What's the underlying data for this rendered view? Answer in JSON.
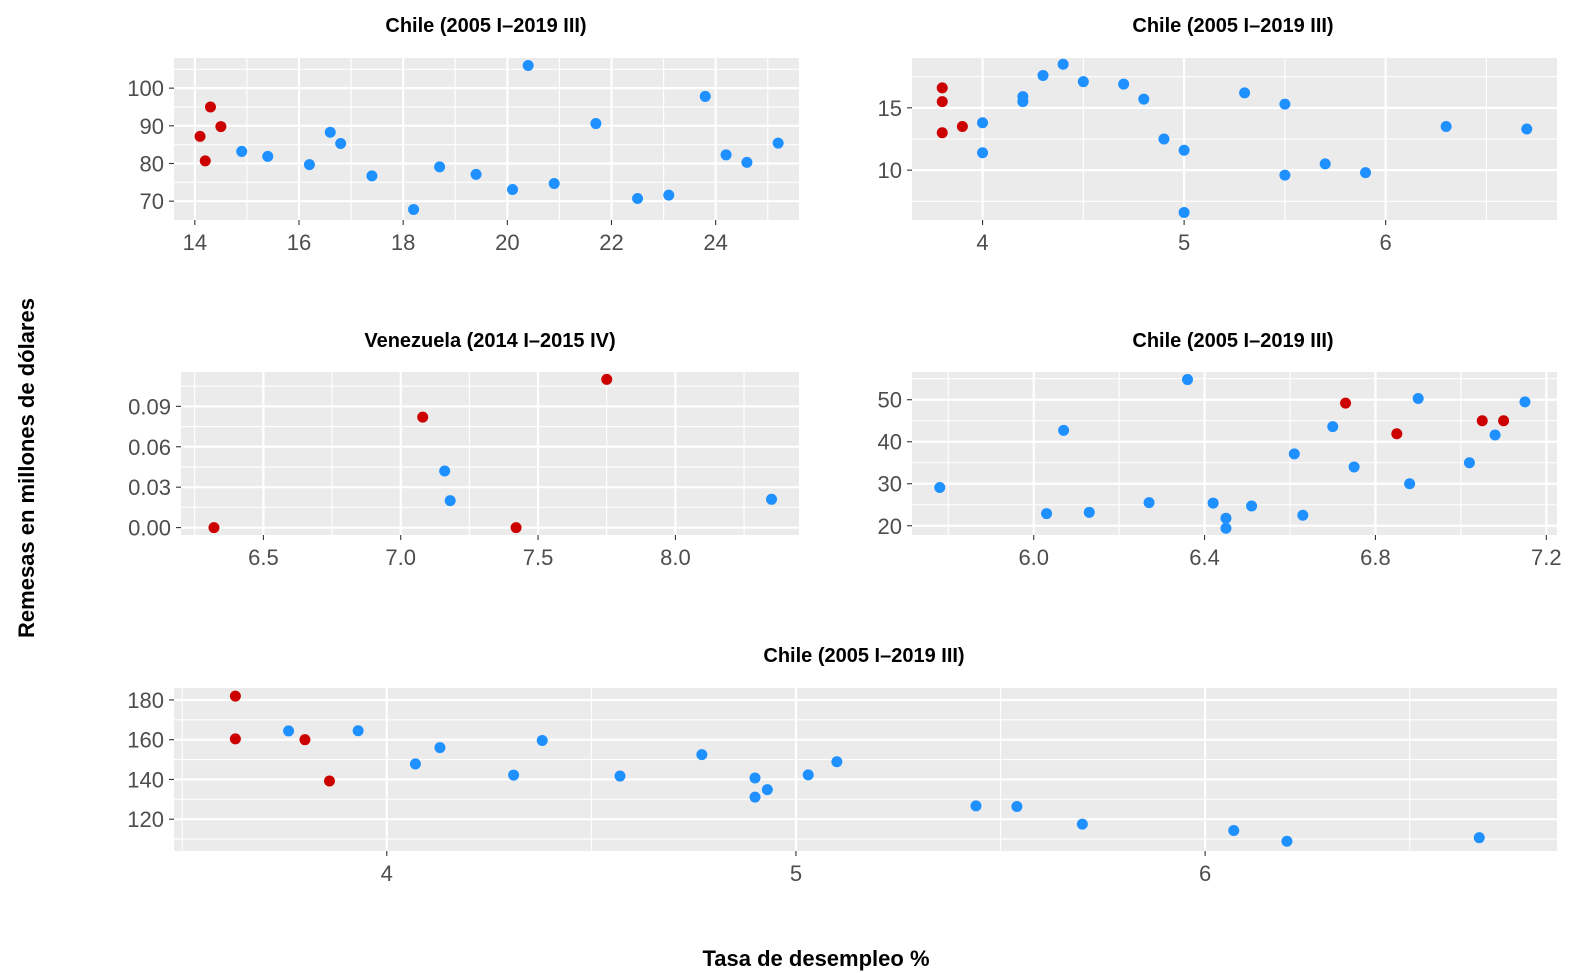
{
  "figure": {
    "xlabel": "Tasa de desempleo %",
    "ylabel": "Remesas en millones de dólares",
    "colors": {
      "regular": "#1e90ff",
      "highlight": "#cc0000",
      "panel": "#ebebeb",
      "grid": "#ffffff"
    }
  },
  "chart_data": [
    {
      "type": "scatter",
      "title": "Chile (2005 I–2019 III)",
      "xlim": [
        13.6,
        25.6
      ],
      "ylim": [
        65,
        108
      ],
      "xticks": [
        14,
        16,
        18,
        20,
        22,
        24
      ],
      "xtick_labels": [
        "14",
        "16",
        "18",
        "20",
        "22",
        "24"
      ],
      "yticks": [
        70,
        80,
        90,
        100
      ],
      "ytick_labels": [
        "70",
        "80",
        "90",
        "100"
      ],
      "grid": true,
      "series": [
        {
          "color": "#1e90ff",
          "points": [
            [
              14.9,
              83.2
            ],
            [
              15.4,
              81.9
            ],
            [
              16.2,
              79.7
            ],
            [
              16.6,
              88.3
            ],
            [
              16.8,
              85.3
            ],
            [
              17.4,
              76.7
            ],
            [
              18.2,
              67.8
            ],
            [
              18.7,
              79.1
            ],
            [
              19.4,
              77.1
            ],
            [
              20.1,
              73.1
            ],
            [
              20.4,
              106.0
            ],
            [
              20.9,
              74.7
            ],
            [
              21.7,
              90.6
            ],
            [
              22.5,
              70.7
            ],
            [
              23.1,
              71.6
            ],
            [
              23.8,
              97.8
            ],
            [
              24.2,
              82.3
            ],
            [
              24.6,
              80.3
            ],
            [
              25.2,
              85.4
            ]
          ]
        },
        {
          "color": "#cc0000",
          "points": [
            [
              14.1,
              87.2
            ],
            [
              14.2,
              80.7
            ],
            [
              14.3,
              95.0
            ],
            [
              14.5,
              89.8
            ]
          ]
        }
      ]
    },
    {
      "type": "scatter",
      "title": "Chile (2005 I–2019 III)",
      "xlim": [
        3.65,
        6.85
      ],
      "ylim": [
        6.0,
        19.0
      ],
      "xticks": [
        4,
        5,
        6
      ],
      "xtick_labels": [
        "4",
        "5",
        "6"
      ],
      "yticks": [
        10,
        15
      ],
      "ytick_labels": [
        "10",
        "15"
      ],
      "grid": true,
      "series": [
        {
          "color": "#1e90ff",
          "points": [
            [
              4.0,
              13.8
            ],
            [
              4.0,
              11.4
            ],
            [
              4.2,
              15.9
            ],
            [
              4.2,
              15.5
            ],
            [
              4.3,
              17.6
            ],
            [
              4.4,
              18.5
            ],
            [
              4.5,
              17.1
            ],
            [
              4.7,
              16.9
            ],
            [
              4.8,
              15.7
            ],
            [
              4.9,
              12.5
            ],
            [
              5.0,
              11.6
            ],
            [
              5.0,
              6.6
            ],
            [
              5.3,
              16.2
            ],
            [
              5.5,
              15.3
            ],
            [
              5.5,
              9.6
            ],
            [
              5.7,
              10.5
            ],
            [
              5.9,
              9.8
            ],
            [
              6.3,
              13.5
            ],
            [
              6.7,
              13.3
            ]
          ]
        },
        {
          "color": "#cc0000",
          "points": [
            [
              3.8,
              16.6
            ],
            [
              3.8,
              15.5
            ],
            [
              3.8,
              13.0
            ],
            [
              3.9,
              13.5
            ]
          ]
        }
      ]
    },
    {
      "type": "scatter",
      "title": "Venezuela (2014 I–2015 IV)",
      "xlim": [
        6.2,
        8.45
      ],
      "ylim": [
        -0.0055,
        0.1155
      ],
      "xticks": [
        6.5,
        7.0,
        7.5,
        8.0
      ],
      "xtick_labels": [
        "6.5",
        "7.0",
        "7.5",
        "8.0"
      ],
      "yticks": [
        0.0,
        0.03,
        0.06,
        0.09
      ],
      "ytick_labels": [
        "0.00",
        "0.03",
        "0.06",
        "0.09"
      ],
      "grid": true,
      "series": [
        {
          "color": "#1e90ff",
          "points": [
            [
              7.16,
              0.042
            ],
            [
              7.18,
              0.02
            ],
            [
              8.35,
              0.021
            ]
          ]
        },
        {
          "color": "#cc0000",
          "points": [
            [
              6.32,
              0.0
            ],
            [
              7.08,
              0.082
            ],
            [
              7.42,
              0.0
            ],
            [
              7.75,
              0.11
            ]
          ]
        }
      ]
    },
    {
      "type": "scatter",
      "title": "Chile (2005 I–2019 III)",
      "xlim": [
        5.715,
        7.225
      ],
      "ylim": [
        17.8,
        56.6
      ],
      "xticks": [
        6.0,
        6.4,
        6.8,
        7.2
      ],
      "xtick_labels": [
        "6.0",
        "6.4",
        "6.8",
        "7.2"
      ],
      "yticks": [
        20,
        30,
        40,
        50
      ],
      "ytick_labels": [
        "20",
        "30",
        "40",
        "50"
      ],
      "grid": true,
      "series": [
        {
          "color": "#1e90ff",
          "points": [
            [
              5.78,
              29.1
            ],
            [
              6.03,
              22.9
            ],
            [
              6.07,
              42.7
            ],
            [
              6.13,
              23.2
            ],
            [
              6.27,
              25.5
            ],
            [
              6.36,
              54.8
            ],
            [
              6.42,
              25.4
            ],
            [
              6.45,
              21.8
            ],
            [
              6.45,
              19.4
            ],
            [
              6.51,
              24.7
            ],
            [
              6.61,
              37.1
            ],
            [
              6.63,
              22.5
            ],
            [
              6.7,
              43.6
            ],
            [
              6.75,
              34.0
            ],
            [
              6.88,
              30.0
            ],
            [
              6.9,
              50.3
            ],
            [
              7.02,
              35.0
            ],
            [
              7.08,
              41.6
            ],
            [
              7.15,
              49.5
            ]
          ]
        },
        {
          "color": "#cc0000",
          "points": [
            [
              6.73,
              49.2
            ],
            [
              6.85,
              41.9
            ],
            [
              7.05,
              45.0
            ],
            [
              7.1,
              45.0
            ]
          ]
        }
      ]
    },
    {
      "type": "scatter",
      "title": "Chile (2005 I–2019 III)",
      "xlim": [
        3.48,
        6.86
      ],
      "ylim": [
        104,
        186
      ],
      "xticks": [
        4,
        5,
        6
      ],
      "xtick_labels": [
        "4",
        "5",
        "6"
      ],
      "yticks": [
        120,
        140,
        160,
        180
      ],
      "ytick_labels": [
        "120",
        "140",
        "160",
        "180"
      ],
      "grid": true,
      "series": [
        {
          "color": "#1e90ff",
          "points": [
            [
              3.76,
              164.4
            ],
            [
              3.93,
              164.5
            ],
            [
              4.07,
              147.8
            ],
            [
              4.13,
              156.0
            ],
            [
              4.31,
              142.2
            ],
            [
              4.38,
              159.6
            ],
            [
              4.57,
              141.7
            ],
            [
              4.77,
              152.5
            ],
            [
              4.9,
              140.7
            ],
            [
              4.9,
              131.1
            ],
            [
              4.93,
              134.9
            ],
            [
              5.03,
              142.3
            ],
            [
              5.1,
              148.9
            ],
            [
              5.44,
              126.7
            ],
            [
              5.54,
              126.4
            ],
            [
              5.7,
              117.5
            ],
            [
              6.07,
              114.3
            ],
            [
              6.2,
              108.9
            ],
            [
              6.67,
              110.7
            ]
          ]
        },
        {
          "color": "#cc0000",
          "points": [
            [
              3.63,
              181.9
            ],
            [
              3.63,
              160.4
            ],
            [
              3.8,
              160.0
            ],
            [
              3.86,
              139.2
            ]
          ]
        }
      ]
    }
  ]
}
